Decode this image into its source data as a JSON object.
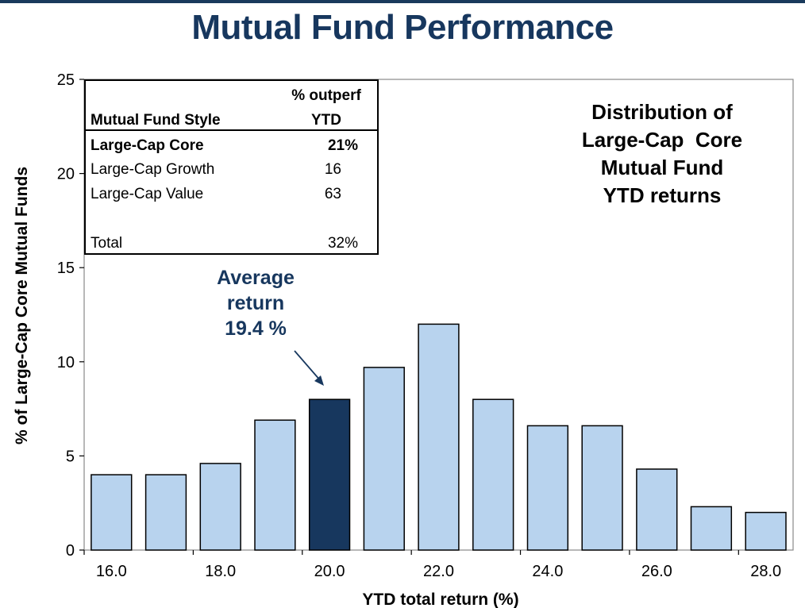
{
  "page": {
    "title": "Mutual Fund Performance"
  },
  "chart_data": {
    "type": "bar",
    "title": "Mutual Fund Performance",
    "xlabel": "YTD total return (%)",
    "ylabel": "% of Large-Cap Core Mutual Funds",
    "ylim": [
      0,
      25
    ],
    "yticks": [
      0,
      5,
      10,
      15,
      20,
      25
    ],
    "xtick_labels": [
      "16.0",
      "18.0",
      "20.0",
      "22.0",
      "24.0",
      "26.0",
      "28.0"
    ],
    "categories": [
      "16.0",
      "17.0",
      "18.0",
      "19.0",
      "20.0",
      "21.0",
      "22.0",
      "23.0",
      "24.0",
      "25.0",
      "26.0",
      "27.0",
      "28.0"
    ],
    "values": [
      4.0,
      4.0,
      4.6,
      6.9,
      8.0,
      9.7,
      12.0,
      8.0,
      6.6,
      6.6,
      4.3,
      2.3,
      2.0
    ],
    "highlight_index": 4,
    "colors": {
      "bar": "#b8d3ee",
      "highlight": "#17375e",
      "edge": "#000000",
      "title": "#17375e"
    },
    "annotations": {
      "average": [
        "Average",
        "return",
        "19.4 %"
      ],
      "distribution": [
        "Distribution of",
        "Large-Cap  Core",
        "Mutual Fund",
        "YTD returns"
      ]
    },
    "table": {
      "headers": {
        "style": "Mutual Fund Style",
        "outperf_line1": "% outperf",
        "outperf_line2": "YTD"
      },
      "rows": [
        {
          "style": "Large-Cap Core",
          "value": "21%",
          "bold": true
        },
        {
          "style": "Large-Cap Growth",
          "value": "16",
          "bold": false
        },
        {
          "style": "Large-Cap Value",
          "value": "63",
          "bold": false
        }
      ],
      "total": {
        "style": "Total",
        "value": "32%"
      }
    }
  }
}
